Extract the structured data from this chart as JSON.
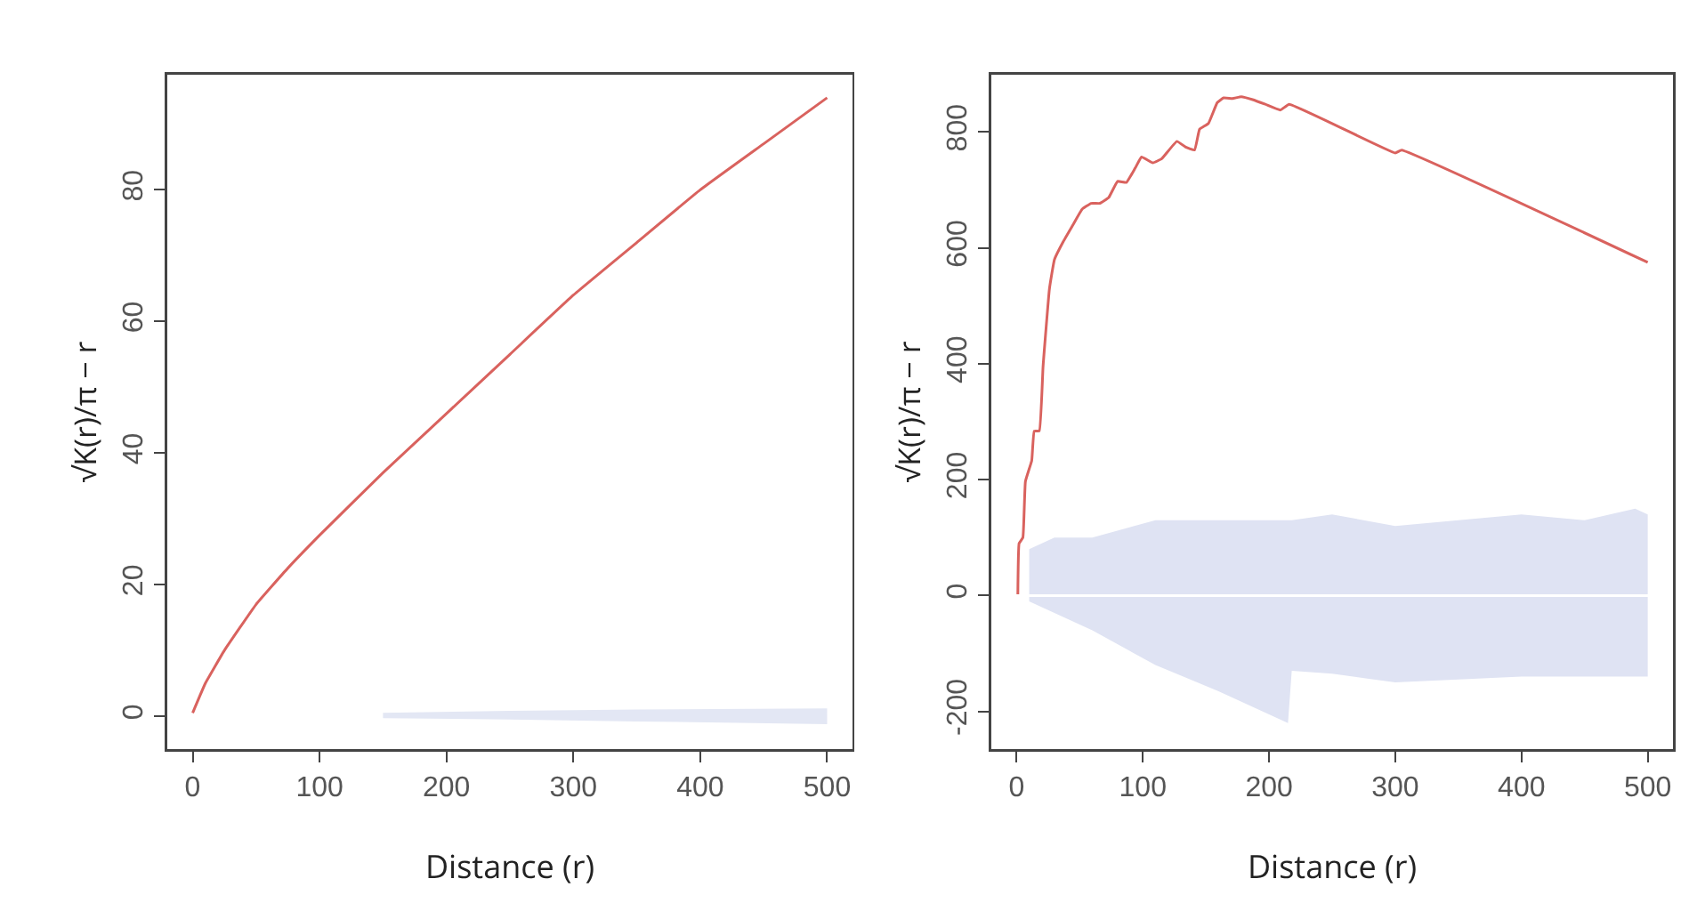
{
  "chart_data": [
    {
      "type": "line",
      "xlabel": "Distance (r)",
      "ylabel": "√K(r)/π − r",
      "xlim": [
        -20,
        520
      ],
      "xticks": [
        0,
        100,
        200,
        300,
        400,
        500
      ],
      "ylim": [
        -5,
        97.5
      ],
      "yticks": [
        0,
        20,
        40,
        60,
        80
      ],
      "series": [
        {
          "color": "#e3e7f4",
          "x": [
            150,
            250,
            350,
            500
          ],
          "values": [
            null,
            null,
            null,
            null
          ],
          "lower": [
            -0.3,
            -0.5,
            -0.8,
            -1.2
          ],
          "upper": [
            0.5,
            0.8,
            1,
            1.2
          ]
        },
        {
          "color": "#d9625e",
          "x": [
            0,
            10,
            25,
            50,
            75,
            100,
            150,
            200,
            250,
            300,
            350,
            400,
            450,
            500
          ],
          "values": [
            0.5,
            5,
            10,
            17,
            22.5,
            27.5,
            37,
            46,
            55,
            64,
            72,
            80,
            87,
            94
          ]
        }
      ]
    },
    {
      "type": "line",
      "xlabel": "Distance (r)",
      "ylabel": "√K(r)/π − r",
      "xlim": [
        -20,
        520
      ],
      "xticks": [
        0,
        100,
        200,
        300,
        400,
        500
      ],
      "ylim": [
        -265,
        899
      ],
      "yticks": [
        -200,
        0,
        200,
        400,
        600,
        800
      ],
      "ref_lines": [
        {
          "axis": "y",
          "value": 0,
          "color": "#ffffff"
        }
      ],
      "series": [
        {
          "color": "#dfe3f3",
          "x": [
            10,
            30,
            60,
            110,
            160,
            215,
            218,
            250,
            300,
            350,
            400,
            450,
            490,
            500
          ],
          "values": [
            null,
            null,
            null,
            null,
            null,
            null,
            null,
            null,
            null,
            null,
            null,
            null,
            null,
            null
          ],
          "lower": [
            -10,
            -30,
            -60,
            -120,
            -165,
            -220,
            -130,
            -135,
            -150,
            -145,
            -140,
            -140,
            -140,
            -140
          ],
          "upper": [
            80,
            100,
            100,
            130,
            130,
            130,
            130,
            140,
            120,
            130,
            140,
            130,
            150,
            140
          ]
        },
        {
          "color": "#d9625e",
          "x": [
            1,
            2,
            5,
            7,
            12,
            14,
            18,
            21,
            26,
            30,
            37,
            45,
            52,
            59,
            66,
            73,
            80,
            87,
            94,
            99,
            108,
            115,
            127,
            134,
            141,
            145,
            152,
            159,
            164,
            171,
            178,
            187,
            197,
            209,
            216,
            300,
            305,
            500
          ],
          "values": [
            0,
            90,
            100,
            197,
            233,
            284,
            284,
            396,
            529,
            580,
            611,
            641,
            667,
            677,
            677,
            687,
            715,
            713,
            738,
            757,
            747,
            754,
            784,
            774,
            769,
            805,
            815,
            851,
            859,
            858,
            861,
            856,
            848,
            838,
            848,
            764,
            769,
            575
          ]
        }
      ]
    }
  ]
}
